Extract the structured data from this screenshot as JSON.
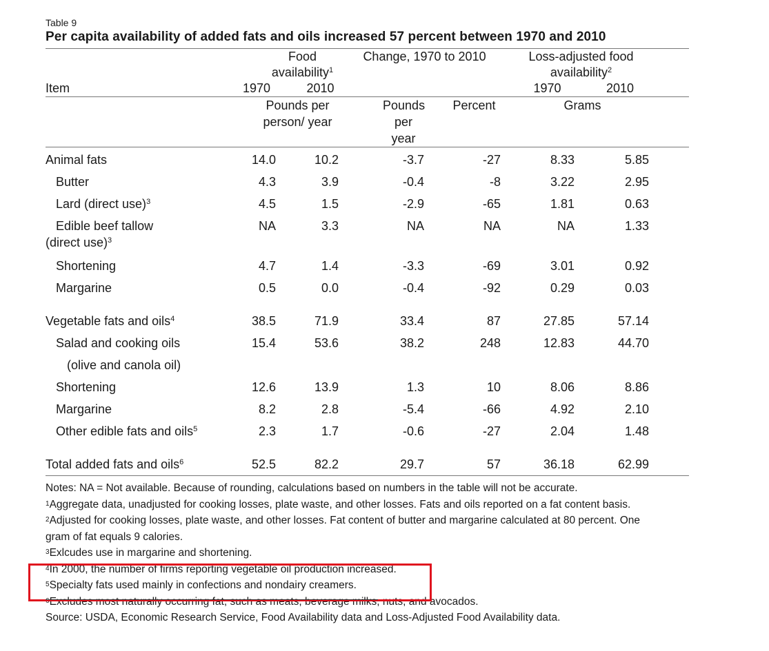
{
  "table_label": "Table 9",
  "title": "Per capita availability of added fats and oils increased 57 percent between 1970 and 2010",
  "header": {
    "food_availability_label": "Food availability",
    "food_availability_sup": "1",
    "change_label": "Change, 1970 to 2010",
    "loss_adjusted_label": "Loss-adjusted food availability",
    "loss_adjusted_sup": "2",
    "item_label": "Item",
    "year_1970": "1970",
    "year_2010": "2010",
    "units_food": "Pounds per person/ year",
    "units_change": "Pounds per year",
    "units_percent": "Percent",
    "units_grams": "Grams"
  },
  "rows": [
    {
      "item": "Animal fats",
      "sup": "",
      "fa1970": "14.0",
      "fa2010": "10.2",
      "chg": "-3.7",
      "pct": "-27",
      "g1970": "8.33",
      "g2010": "5.85"
    },
    {
      "item": "Butter",
      "sup": "",
      "fa1970": "4.3",
      "fa2010": "3.9",
      "chg": "-0.4",
      "pct": "-8",
      "g1970": "3.22",
      "g2010": "2.95"
    },
    {
      "item": "Lard (direct use)",
      "sup": "3",
      "fa1970": "4.5",
      "fa2010": "1.5",
      "chg": "-2.9",
      "pct": "-65",
      "g1970": "1.81",
      "g2010": "0.63"
    },
    {
      "item": "Edible beef tallow",
      "item_line2": "(direct use)",
      "sup": "3",
      "fa1970": "NA",
      "fa2010": "3.3",
      "chg": "NA",
      "pct": "NA",
      "g1970": "NA",
      "g2010": "1.33"
    },
    {
      "item": "Shortening",
      "sup": "",
      "fa1970": "4.7",
      "fa2010": "1.4",
      "chg": "-3.3",
      "pct": "-69",
      "g1970": "3.01",
      "g2010": "0.92"
    },
    {
      "item": "Margarine",
      "sup": "",
      "fa1970": "0.5",
      "fa2010": "0.0",
      "chg": "-0.4",
      "pct": "-92",
      "g1970": "0.29",
      "g2010": "0.03"
    },
    {
      "item": "Vegetable fats and oils",
      "sup": "4",
      "fa1970": "38.5",
      "fa2010": "71.9",
      "chg": "33.4",
      "pct": "87",
      "g1970": "27.85",
      "g2010": "57.14"
    },
    {
      "item": "Salad and cooking oils",
      "sup": "",
      "fa1970": "15.4",
      "fa2010": "53.6",
      "chg": "38.2",
      "pct": "248",
      "g1970": "12.83",
      "g2010": "44.70"
    },
    {
      "item": "(olive and canola oil)",
      "sup": "",
      "fa1970": "",
      "fa2010": "",
      "chg": "",
      "pct": "",
      "g1970": "",
      "g2010": ""
    },
    {
      "item": "Shortening",
      "sup": "",
      "fa1970": "12.6",
      "fa2010": "13.9",
      "chg": "1.3",
      "pct": "10",
      "g1970": "8.06",
      "g2010": "8.86"
    },
    {
      "item": "Margarine",
      "sup": "",
      "fa1970": "8.2",
      "fa2010": "2.8",
      "chg": "-5.4",
      "pct": "-66",
      "g1970": "4.92",
      "g2010": "2.10"
    },
    {
      "item": "Other edible fats and oils",
      "sup": "5",
      "fa1970": "2.3",
      "fa2010": "1.7",
      "chg": "-0.6",
      "pct": "-27",
      "g1970": "2.04",
      "g2010": "1.48"
    },
    {
      "item": "Total added fats and oils",
      "sup": "6",
      "fa1970": "52.5",
      "fa2010": "82.2",
      "chg": "29.7",
      "pct": "57",
      "g1970": "36.18",
      "g2010": "62.99"
    }
  ],
  "notes": {
    "note_na": "Notes: NA = Not available. Because of rounding, calculations based on numbers in the table will not be accurate.",
    "fn1_sup": "1",
    "fn1": "Aggregate data, unadjusted for cooking losses, plate waste, and other losses. Fats and oils reported on a fat content basis.",
    "fn2_sup": "2",
    "fn2_line1": "Adjusted for cooking losses, plate waste, and other losses. Fat content of butter and margarine calculated at 80 percent. One",
    "fn2_line2": "gram of fat equals 9 calories.",
    "fn3_sup": "3",
    "fn3": "Exlcudes use in margarine and shortening.",
    "fn4_sup": "4",
    "fn4": "In 2000, the number of firms reporting vegetable oil production increased.",
    "fn5_sup": "5",
    "fn5": "Specialty fats used mainly in confections and nondairy creamers.",
    "fn6_sup": "6",
    "fn6": "Excludes most naturally occurring fat, such as meats, beverage milks, nuts, and avocados.",
    "source": "Source: USDA, Economic Research Service, Food Availability data and Loss-Adjusted Food Availability data."
  },
  "colors": {
    "highlight_border": "#e0141e",
    "rule": "#777777",
    "text": "#1a1a1a"
  }
}
